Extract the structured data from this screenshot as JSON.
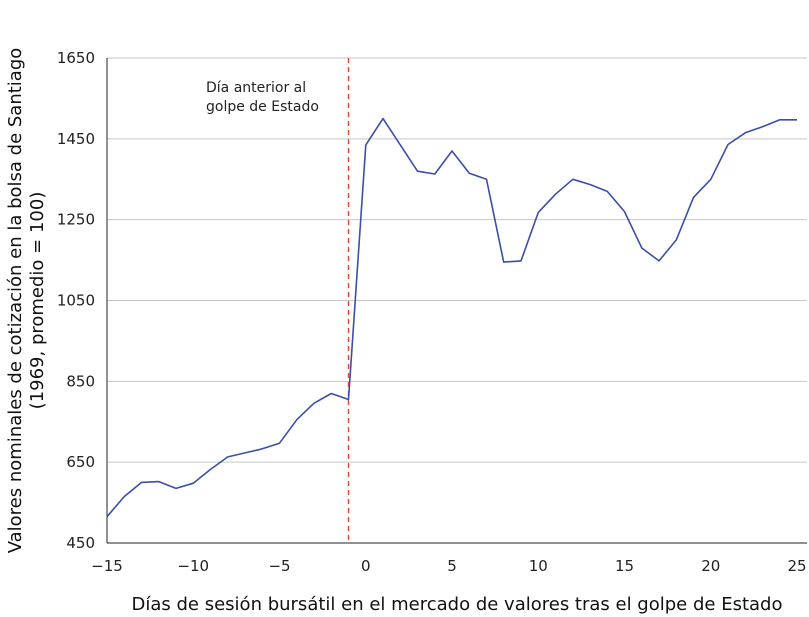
{
  "chart_data": {
    "type": "line",
    "xlabel": "Días de sesión bursátil en el mercado de valores tras el golpe de Estado",
    "ylabel_line1": "Valores nominales de cotización en la bolsa de Santiago",
    "ylabel_line2": "(1969, promedio = 100)",
    "xlim": [
      -15,
      25
    ],
    "ylim": [
      450,
      1650
    ],
    "xticks": [
      -15,
      -10,
      -5,
      0,
      5,
      10,
      15,
      20,
      25
    ],
    "xtick_labels": [
      "−15",
      "−10",
      "−5",
      "0",
      "5",
      "10",
      "15",
      "20",
      "25"
    ],
    "yticks": [
      450,
      650,
      850,
      1050,
      1250,
      1450,
      1650
    ],
    "ytick_labels": [
      "450",
      "650",
      "850",
      "1050",
      "1250",
      "1450",
      "1650"
    ],
    "grid": "horizontal",
    "line_color": "#3a4fa8",
    "marker_color": "#e8443a",
    "annotation": {
      "x": -1,
      "line1": "Día anterior al",
      "line2": "golpe de Estado"
    },
    "series": [
      {
        "x": [
          -15,
          -14,
          -13,
          -12,
          -11,
          -10,
          -9,
          -8,
          -7,
          -6,
          -5,
          -4,
          -3,
          -2,
          -1,
          0,
          1,
          2,
          3,
          4,
          5,
          6,
          7,
          8,
          9,
          10,
          11,
          12,
          13,
          14,
          15,
          16,
          17,
          18,
          19,
          20,
          21,
          22,
          23,
          24,
          25
        ],
        "values": [
          515,
          565,
          600,
          602,
          585,
          598,
          632,
          663,
          673,
          683,
          697,
          755,
          796,
          820,
          805,
          1435,
          1500,
          1435,
          1370,
          1363,
          1420,
          1365,
          1350,
          1145,
          1148,
          1268,
          1313,
          1350,
          1337,
          1320,
          1270,
          1180,
          1148,
          1200,
          1305,
          1350,
          1436,
          1465,
          1480,
          1497,
          1497
        ]
      }
    ]
  }
}
